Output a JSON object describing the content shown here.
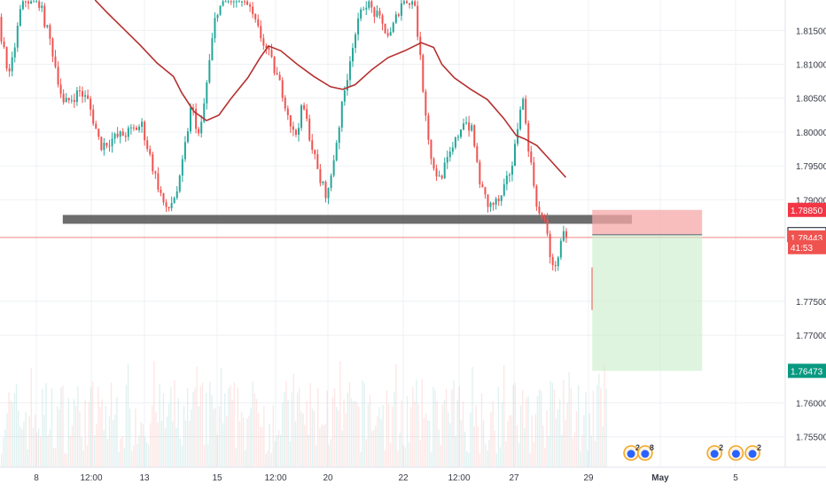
{
  "chart_data": {
    "type": "candlestick",
    "title": "",
    "xlabel": "",
    "ylabel": "",
    "ylim": [
      1.7505,
      1.8195
    ],
    "grid": true,
    "x_ticks": [
      "8",
      "12:00",
      "13",
      "15",
      "12:00",
      "20",
      "22",
      "12:00",
      "27",
      "29",
      "May",
      "5"
    ],
    "y_ticks": [
      "1.81500",
      "1.81000",
      "1.80500",
      "1.80000",
      "1.79500",
      "1.79000",
      "1.77500",
      "1.77000",
      "1.76000",
      "1.75500"
    ],
    "price_tags": [
      {
        "label": "1.78850",
        "value": 1.7885,
        "color": "#f23645"
      },
      {
        "label": "1.78484",
        "value": 1.78484,
        "color": "#ffffff"
      },
      {
        "label": "1.78443",
        "value": 1.78443,
        "color": "#ef5350"
      },
      {
        "label": "41:53",
        "value": 1.783,
        "color": "#ef5350"
      },
      {
        "label": "1.76473",
        "value": 1.76473,
        "color": "#089981"
      }
    ],
    "series": [
      {
        "kind": "moving-average",
        "color": "#b5302f",
        "points": [
          [
            0.115,
            1.8195
          ],
          [
            0.13,
            1.8176
          ],
          [
            0.15,
            1.8152
          ],
          [
            0.17,
            1.8128
          ],
          [
            0.19,
            1.8102
          ],
          [
            0.21,
            1.8082
          ],
          [
            0.22,
            1.8058
          ],
          [
            0.235,
            1.803
          ],
          [
            0.25,
            1.8017
          ],
          [
            0.265,
            1.8025
          ],
          [
            0.28,
            1.805
          ],
          [
            0.3,
            1.808
          ],
          [
            0.315,
            1.811
          ],
          [
            0.325,
            1.8127
          ],
          [
            0.34,
            1.812
          ],
          [
            0.36,
            1.81
          ],
          [
            0.38,
            1.8082
          ],
          [
            0.4,
            1.8067
          ],
          [
            0.415,
            1.8063
          ],
          [
            0.43,
            1.807
          ],
          [
            0.45,
            1.8092
          ],
          [
            0.47,
            1.811
          ],
          [
            0.49,
            1.812
          ],
          [
            0.51,
            1.8132
          ],
          [
            0.525,
            1.8125
          ],
          [
            0.535,
            1.81
          ],
          [
            0.55,
            1.808
          ],
          [
            0.57,
            1.8063
          ],
          [
            0.59,
            1.8048
          ],
          [
            0.61,
            1.802
          ],
          [
            0.625,
            1.7995
          ],
          [
            0.635,
            1.799
          ],
          [
            0.65,
            1.798
          ],
          [
            0.665,
            1.796
          ],
          [
            0.685,
            1.7933
          ]
        ]
      },
      {
        "kind": "candles-ohlc",
        "up_color": "#26a69a",
        "down_color": "#ef5350",
        "waypoints": [
          [
            0.0,
            1.817
          ],
          [
            0.015,
            1.808
          ],
          [
            0.03,
            1.8195
          ],
          [
            0.05,
            1.8195
          ],
          [
            0.065,
            1.813
          ],
          [
            0.08,
            1.804
          ],
          [
            0.1,
            1.806
          ],
          [
            0.11,
            1.8045
          ],
          [
            0.125,
            1.798
          ],
          [
            0.14,
            1.799
          ],
          [
            0.16,
            1.8
          ],
          [
            0.175,
            1.801
          ],
          [
            0.19,
            1.794
          ],
          [
            0.205,
            1.788
          ],
          [
            0.22,
            1.792
          ],
          [
            0.235,
            1.804
          ],
          [
            0.245,
            1.799
          ],
          [
            0.265,
            1.818
          ],
          [
            0.28,
            1.8195
          ],
          [
            0.3,
            1.8195
          ],
          [
            0.33,
            1.811
          ],
          [
            0.345,
            1.806
          ],
          [
            0.36,
            1.799
          ],
          [
            0.37,
            1.804
          ],
          [
            0.39,
            1.793
          ],
          [
            0.4,
            1.7905
          ],
          [
            0.415,
            1.802
          ],
          [
            0.43,
            1.813
          ],
          [
            0.445,
            1.8195
          ],
          [
            0.46,
            1.817
          ],
          [
            0.475,
            1.814
          ],
          [
            0.49,
            1.8195
          ],
          [
            0.505,
            1.8195
          ],
          [
            0.515,
            1.807
          ],
          [
            0.525,
            1.796
          ],
          [
            0.535,
            1.793
          ],
          [
            0.55,
            1.797
          ],
          [
            0.565,
            1.802
          ],
          [
            0.575,
            1.8
          ],
          [
            0.585,
            1.792
          ],
          [
            0.595,
            1.789
          ],
          [
            0.61,
            1.79
          ],
          [
            0.625,
            1.796
          ],
          [
            0.635,
            1.806
          ],
          [
            0.645,
            1.796
          ],
          [
            0.655,
            1.788
          ],
          [
            0.665,
            1.786
          ],
          [
            0.672,
            1.7795
          ],
          [
            0.68,
            1.782
          ],
          [
            0.686,
            1.7848
          ]
        ]
      }
    ],
    "volume": {
      "up_color": "#26a69a",
      "down_color": "#ef5350"
    },
    "annotations": [
      {
        "kind": "support-zone",
        "color": "#5d5d5d",
        "x_start": 0.076,
        "x_end": 0.765,
        "y_value": 1.7871
      },
      {
        "kind": "horizontal-line",
        "color": "#ef5350",
        "y_value": 1.78443
      },
      {
        "kind": "position-loss",
        "color": "#f5a8a8",
        "x_start": 0.717,
        "x_end": 0.85,
        "y_top": 1.7885,
        "y_bottom": 1.78484
      },
      {
        "kind": "position-profit",
        "color": "#c8ecc8",
        "x_start": 0.717,
        "x_end": 0.85,
        "y_top": 1.78484,
        "y_bottom": 1.76473
      }
    ],
    "event_markers": [
      {
        "icon": "economic-event-icon",
        "count": "2",
        "x": 0.764
      },
      {
        "icon": "economic-event-icon",
        "count": "8",
        "x": 0.781
      },
      {
        "icon": "economic-event-icon",
        "count": "2",
        "x": 0.865
      },
      {
        "icon": "economic-event-icon",
        "count": "",
        "x": 0.891
      },
      {
        "icon": "economic-event-icon",
        "count": "2",
        "x": 0.911
      }
    ]
  }
}
